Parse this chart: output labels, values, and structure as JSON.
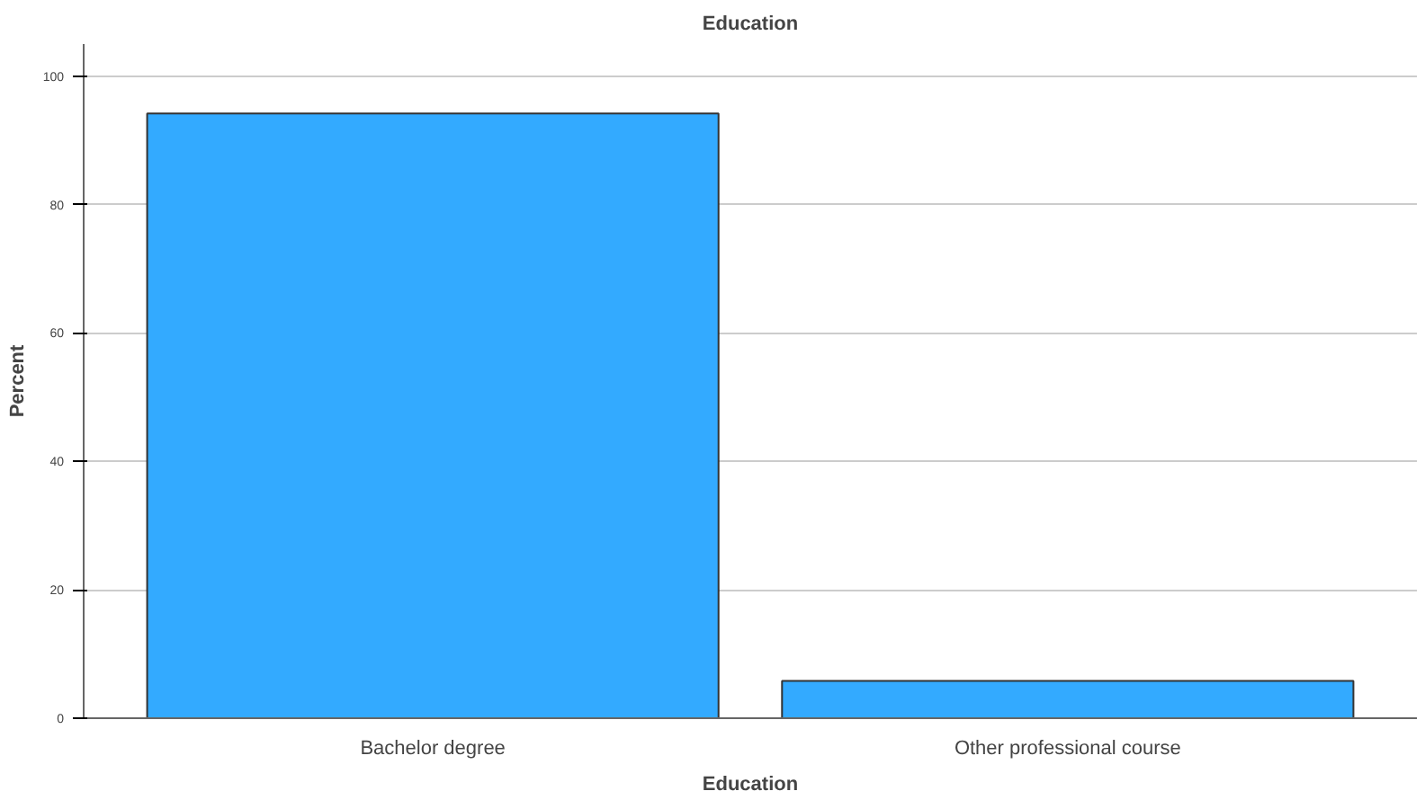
{
  "chart_data": {
    "type": "bar",
    "title": "Education",
    "xlabel": "Education",
    "ylabel": "Percent",
    "categories": [
      "Bachelor degree",
      "Other professional course"
    ],
    "values": [
      94.2,
      5.8
    ],
    "color": "#33aaff",
    "ylim": [
      0,
      105
    ],
    "yticks": [
      0,
      20,
      40,
      60,
      80,
      100
    ],
    "grid": "y"
  }
}
